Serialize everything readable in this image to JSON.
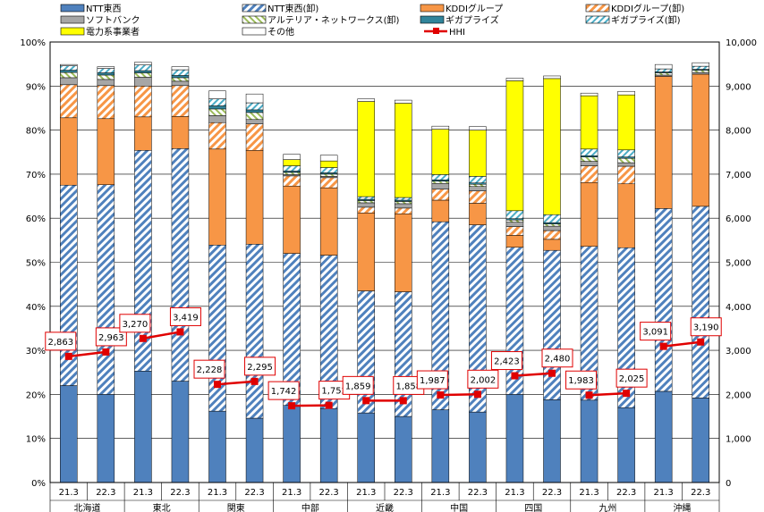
{
  "chart_data": {
    "type": "bar",
    "stacked": true,
    "categories": [
      "21.3",
      "22.3",
      "21.3",
      "22.3",
      "21.3",
      "22.3",
      "21.3",
      "22.3",
      "21.3",
      "22.3",
      "21.3",
      "22.3",
      "21.3",
      "22.3",
      "21.3",
      "22.3",
      "21.3",
      "22.3"
    ],
    "regions": [
      "北海道",
      "東北",
      "関東",
      "中部",
      "近畿",
      "中国",
      "四国",
      "九州",
      "沖縄"
    ],
    "y_left": {
      "min": 0,
      "max": 100,
      "ticks": [
        "0%",
        "10%",
        "20%",
        "30%",
        "40%",
        "50%",
        "60%",
        "70%",
        "80%",
        "90%",
        "100%"
      ]
    },
    "y_right": {
      "min": 0,
      "max": 10000,
      "ticks": [
        "0",
        "1,000",
        "2,000",
        "3,000",
        "4,000",
        "5,000",
        "6,000",
        "7,000",
        "8,000",
        "9,000",
        "10,000"
      ]
    },
    "grid": true,
    "legend_position": "top",
    "series": [
      {
        "name": "NTT東西",
        "color": "#4f81bd",
        "pattern": "solid",
        "values": [
          22,
          20,
          25.3,
          23,
          16.2,
          14.6,
          17.5,
          16.8,
          15.8,
          15,
          16.5,
          16,
          20,
          18.8,
          18.7,
          17,
          20.7,
          19.2
        ]
      },
      {
        "name": "NTT東西(卸)",
        "color": "#4f81bd",
        "pattern": "stripe",
        "values": [
          45.5,
          47.6,
          50.1,
          52.8,
          37.7,
          39.5,
          34.5,
          34.8,
          27.7,
          28.3,
          42.7,
          42.5,
          33.4,
          33.9,
          34.9,
          36.3,
          41.5,
          43.5
        ]
      },
      {
        "name": "KDDIグループ",
        "color": "#f79646",
        "pattern": "solid",
        "values": [
          15.3,
          15,
          7.6,
          7.3,
          21.8,
          21.3,
          15.3,
          15.3,
          17.7,
          17.7,
          4.9,
          4.9,
          2.7,
          2.5,
          14.5,
          14.5,
          30,
          30
        ]
      },
      {
        "name": "KDDIグループ(卸)",
        "color": "#f79646",
        "pattern": "stripe",
        "values": [
          7.5,
          7.5,
          7,
          7,
          6,
          6,
          2.3,
          2.3,
          1.3,
          1.3,
          2.5,
          2.8,
          2,
          2,
          3.8,
          4,
          0,
          0
        ]
      },
      {
        "name": "ソフトバンク",
        "color": "#a6a6a6",
        "pattern": "solid",
        "values": [
          1.6,
          1.4,
          2,
          1,
          1.6,
          1,
          0.3,
          0.3,
          1,
          1,
          1.3,
          1,
          1,
          1,
          1,
          0.8,
          0.3,
          0.4
        ]
      },
      {
        "name": "アルテリア・ネットワークス(卸)",
        "color": "#9bbb59",
        "pattern": "stripe",
        "values": [
          1.2,
          1,
          1,
          0.8,
          1.5,
          1.6,
          0.5,
          0.5,
          0.5,
          0.5,
          0.5,
          0.5,
          0.5,
          0.5,
          1,
          1,
          0.5,
          0.5
        ]
      },
      {
        "name": "ギガプライズ",
        "color": "#31849b",
        "pattern": "solid",
        "values": [
          0.5,
          0.5,
          0.5,
          0.5,
          0.7,
          0.6,
          0.3,
          0.3,
          0.3,
          0.3,
          0.3,
          0.3,
          0.3,
          0.3,
          0.3,
          0.3,
          0.2,
          0.2
        ]
      },
      {
        "name": "ギガプライズ(卸)",
        "color": "#4bacc6",
        "pattern": "stripe",
        "values": [
          1,
          1,
          1.3,
          1.3,
          1.6,
          1.6,
          1.2,
          1.2,
          0.6,
          0.6,
          1.2,
          1.5,
          1.8,
          1.8,
          1.5,
          1.6,
          0.7,
          0.7
        ]
      },
      {
        "name": "電力系事業者",
        "color": "#ffff00",
        "pattern": "solid",
        "values": [
          0,
          0,
          0,
          0,
          0,
          0,
          1.4,
          1.5,
          21.6,
          21.4,
          10.3,
          10.5,
          29.5,
          30.9,
          12.1,
          12.5,
          0,
          0
        ]
      },
      {
        "name": "その他",
        "color": "#ffffff",
        "pattern": "solid",
        "values": [
          0.3,
          0.4,
          0.6,
          0.7,
          1.8,
          2,
          1.2,
          1.3,
          0.6,
          0.7,
          0.7,
          0.8,
          0.6,
          0.6,
          0.6,
          0.8,
          1,
          0.8
        ]
      }
    ],
    "hhi": {
      "name": "HHI",
      "color": "#e00000",
      "values": [
        2863,
        2963,
        3270,
        3419,
        2228,
        2295,
        1742,
        1752,
        1859,
        1858,
        1987,
        2002,
        2423,
        2480,
        1983,
        2025,
        3091,
        3190
      ],
      "labels": [
        "2,863",
        "2,963",
        "3,270",
        "3,419",
        "2,228",
        "2,295",
        "1,742",
        "1,752",
        "1,859",
        "1,858",
        "1,987",
        "2,002",
        "2,423",
        "2,480",
        "1,983",
        "2,025",
        "3,091",
        "3,190"
      ]
    }
  }
}
